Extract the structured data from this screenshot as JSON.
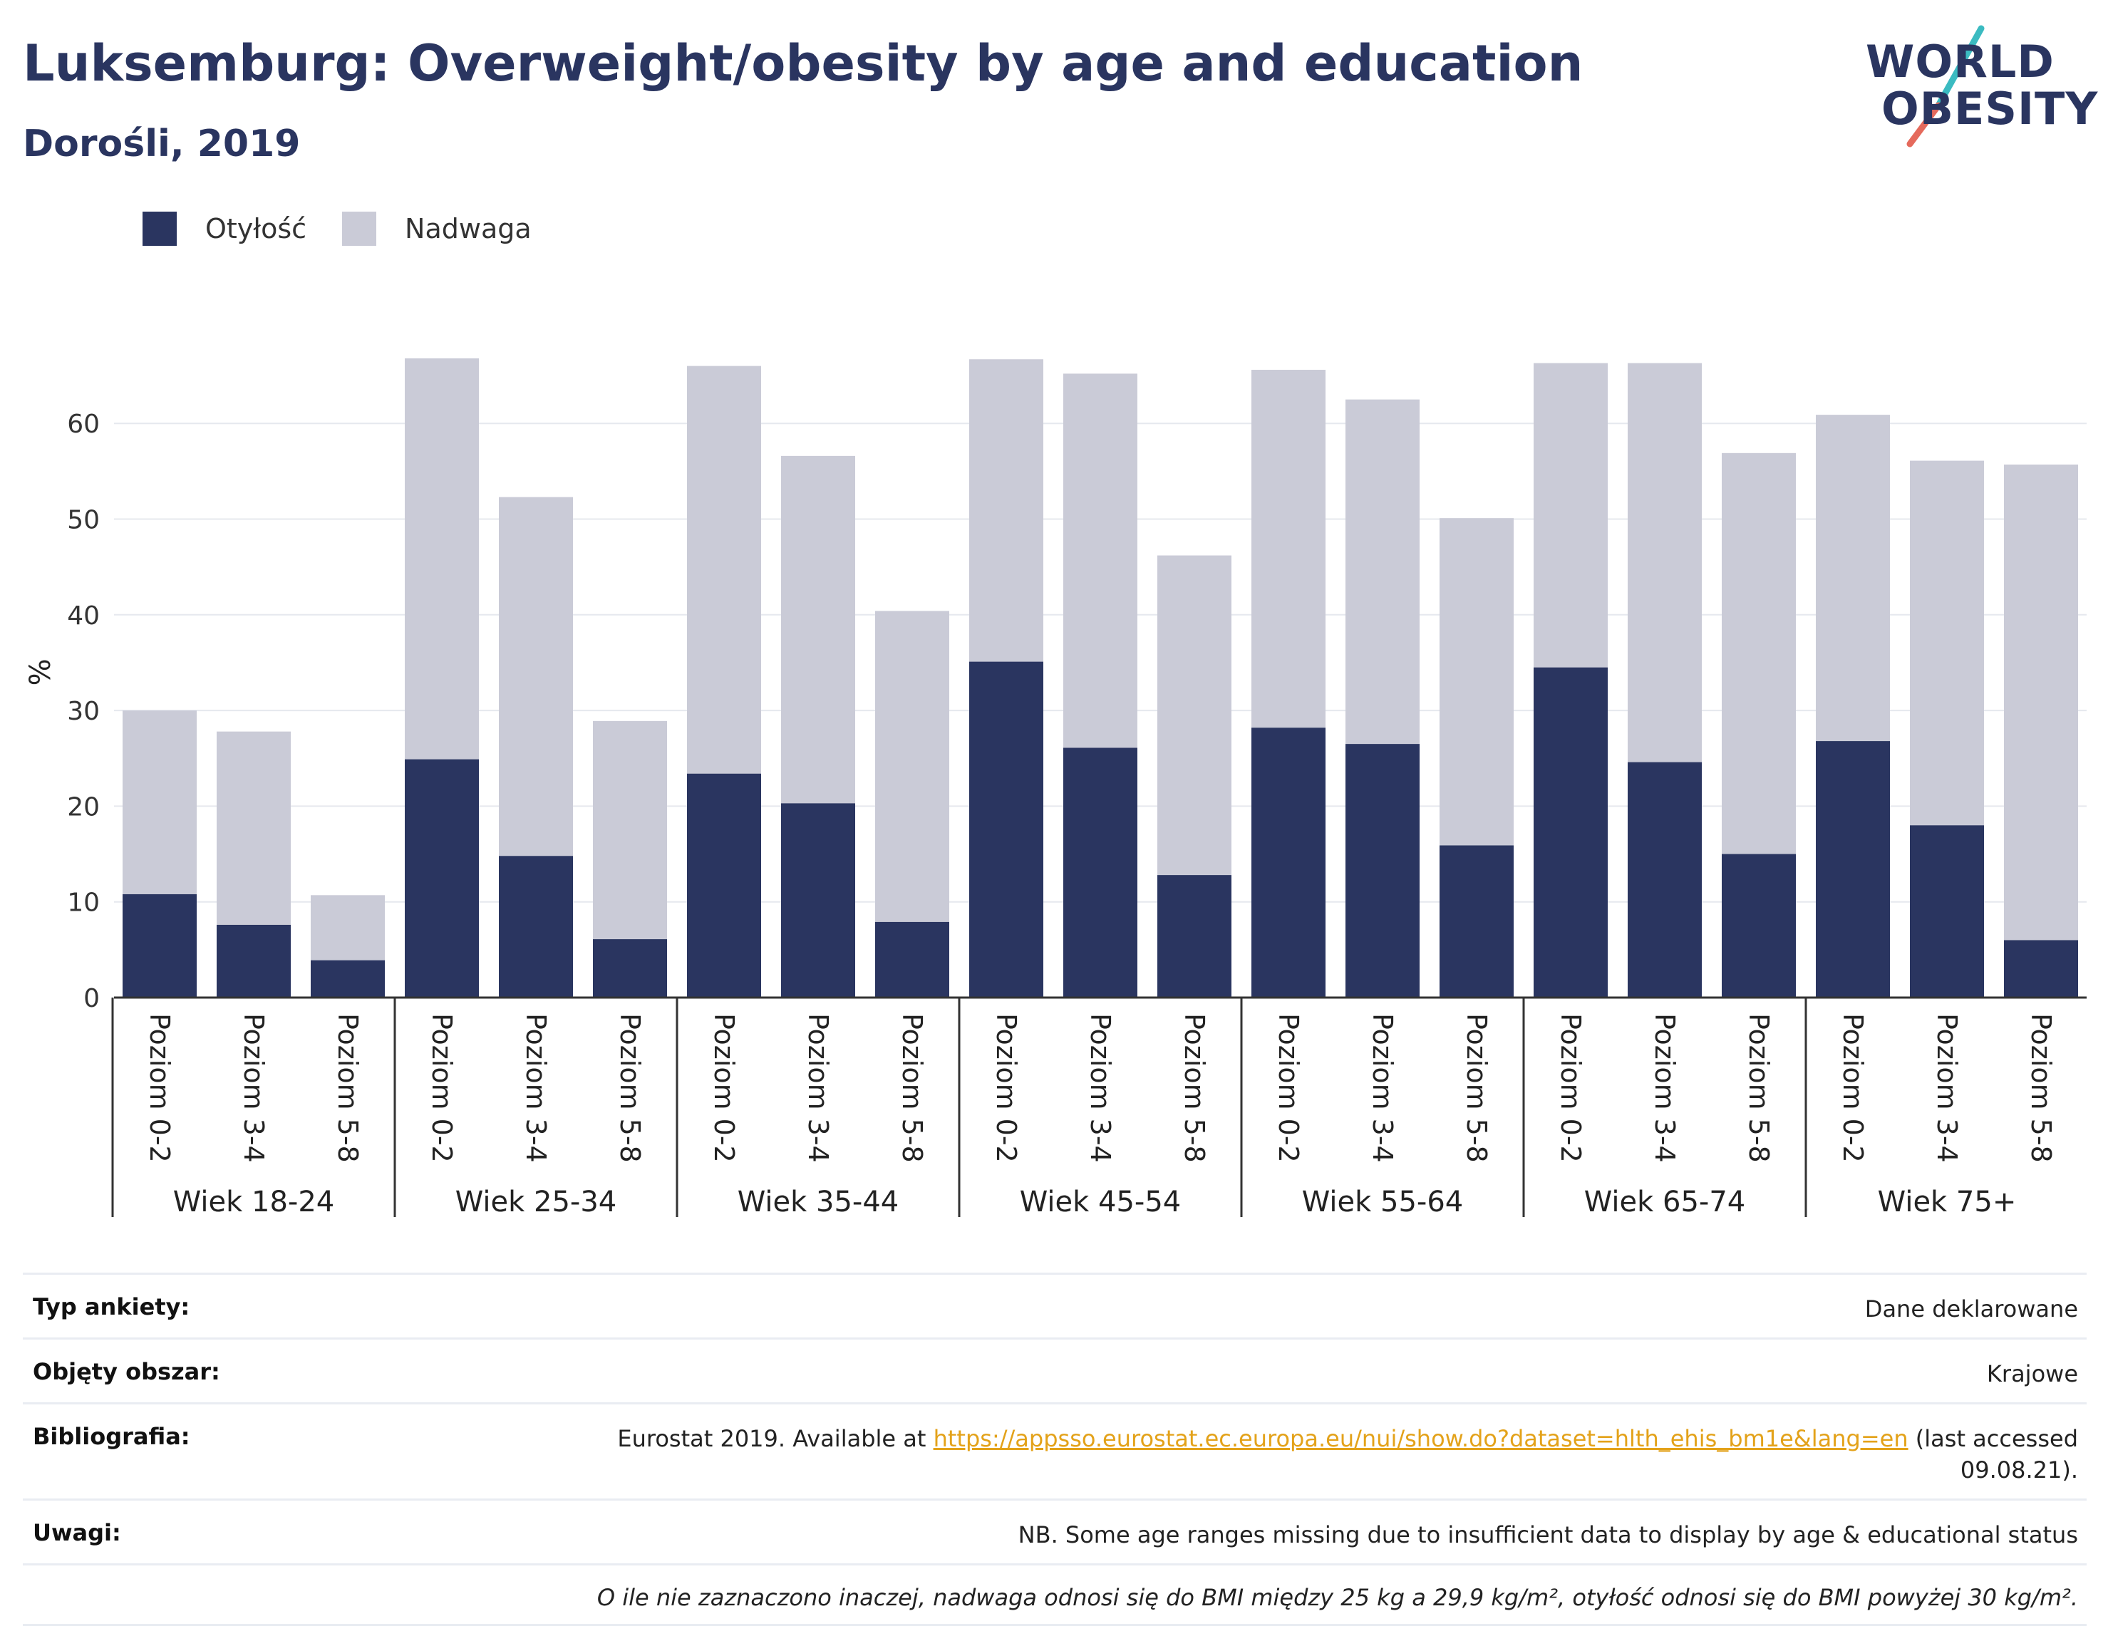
{
  "header": {
    "title": "Luksemburg: Overweight/obesity by age and education",
    "subtitle": "Dorośli, 2019"
  },
  "logo": {
    "line1": "WORLD",
    "line2": "OBESITY"
  },
  "colors": {
    "obesity": "#2a3560",
    "overweight": "#cacbd7",
    "accent_teal": "#3bbbc1",
    "accent_red": "#e56a5c",
    "link": "#e3a21a"
  },
  "legend": [
    {
      "label": "Otyłość",
      "color": "#2a3560"
    },
    {
      "label": "Nadwaga",
      "color": "#cacbd7"
    }
  ],
  "chart_data": {
    "type": "bar",
    "stacked": true,
    "ylabel": "%",
    "ylim": [
      0,
      68
    ],
    "yticks": [
      0,
      10,
      20,
      30,
      40,
      50,
      60
    ],
    "levels": [
      "Poziom 0-2",
      "Poziom 3-4",
      "Poziom 5-8"
    ],
    "groups": [
      "Wiek 18-24",
      "Wiek 25-34",
      "Wiek 35-44",
      "Wiek 45-54",
      "Wiek 55-64",
      "Wiek 65-74",
      "Wiek 75+"
    ],
    "series": [
      {
        "name": "Otyłość",
        "color": "#2a3560",
        "values": [
          10.8,
          7.6,
          3.9,
          24.9,
          14.8,
          6.1,
          23.4,
          20.3,
          7.9,
          35.1,
          26.1,
          12.8,
          28.2,
          26.5,
          15.9,
          34.5,
          24.6,
          15.0,
          26.8,
          18.0,
          6.0
        ]
      },
      {
        "name": "Nadwaga",
        "color": "#cacbd7",
        "values": [
          19.2,
          20.2,
          6.8,
          41.9,
          37.5,
          22.8,
          42.6,
          36.3,
          32.5,
          31.6,
          39.1,
          33.4,
          37.4,
          36.0,
          34.2,
          31.8,
          41.7,
          41.9,
          34.1,
          38.1,
          49.7
        ]
      }
    ]
  },
  "info": {
    "survey_label": "Typ ankiety:",
    "survey_value": "Dane deklarowane",
    "area_label": "Objęty obszar:",
    "area_value": "Krajowe",
    "bib_label": "Bibliografia:",
    "bib_prefix": "Eurostat 2019. Available at ",
    "bib_link": "https://appsso.eurostat.ec.europa.eu/nui/show.do?dataset=hlth_ehis_bm1e&lang=en",
    "bib_suffix": " (last accessed 09.08.21).",
    "notes_label": "Uwagi:",
    "notes_value": "NB. Some age ranges missing due to insufficient data to display by age & educational status",
    "definition": "O ile nie zaznaczono inaczej, nadwaga odnosi się do BMI między 25 kg a 29,9 kg/m², otyłość odnosi się do BMI powyżej 30 kg/m²."
  }
}
